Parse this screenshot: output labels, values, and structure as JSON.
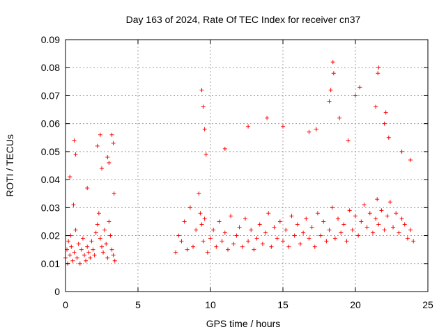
{
  "chart_data": {
    "type": "scatter",
    "title": "Day 163 of 2024, Rate Of TEC Index for receiver cn37",
    "xlabel": "GPS time / hours",
    "ylabel": "ROTI / TECUs",
    "xlim": [
      0,
      25
    ],
    "ylim": [
      0,
      0.09
    ],
    "xticks": [
      "0",
      "5",
      "10",
      "15",
      "20",
      "25"
    ],
    "yticks": [
      "0",
      "0.01",
      "0.02",
      "0.03",
      "0.04",
      "0.05",
      "0.06",
      "0.07",
      "0.08",
      "0.09"
    ],
    "grid": true,
    "marker": "+",
    "color": "#ff0000",
    "series": [
      {
        "x": [
          0.0,
          0.1,
          0.15,
          0.2,
          0.3,
          0.35,
          0.4,
          0.5,
          0.6,
          0.7,
          0.8,
          0.9,
          1.0,
          1.1,
          1.2,
          1.3,
          1.4,
          1.5,
          1.6,
          1.7,
          1.8,
          1.9,
          2.0,
          2.1,
          2.2,
          2.3,
          2.4,
          2.5,
          2.6,
          2.7,
          2.8,
          2.9,
          3.0,
          3.1,
          3.2,
          3.3,
          3.4,
          0.3,
          0.6,
          0.7,
          1.5,
          2.2,
          2.4,
          2.9,
          3.2,
          3.3,
          0.55,
          2.5,
          3.0,
          3.35,
          7.6,
          7.8,
          8.0,
          8.2,
          8.4,
          8.6,
          8.8,
          9.0,
          9.2,
          9.3,
          9.4,
          9.5,
          9.6,
          9.8,
          10.0,
          10.2,
          10.4,
          10.6,
          10.8,
          11.0,
          11.2,
          11.4,
          11.6,
          11.8,
          12.0,
          12.2,
          12.4,
          12.6,
          12.8,
          13.0,
          13.2,
          13.4,
          13.6,
          13.8,
          14.0,
          14.2,
          14.4,
          14.6,
          14.8,
          15.0,
          15.2,
          15.4,
          15.6,
          15.8,
          16.0,
          16.2,
          16.4,
          16.6,
          16.8,
          17.0,
          17.2,
          17.4,
          17.6,
          17.8,
          18.0,
          18.2,
          18.4,
          18.6,
          18.8,
          19.0,
          19.2,
          19.4,
          19.6,
          19.8,
          20.0,
          20.2,
          20.4,
          20.6,
          20.8,
          21.0,
          21.2,
          21.4,
          21.5,
          21.6,
          21.8,
          22.0,
          22.2,
          22.4,
          22.6,
          22.8,
          23.0,
          23.2,
          23.4,
          23.6,
          23.8,
          24.0,
          9.4,
          9.5,
          9.6,
          9.7,
          11.0,
          12.6,
          13.9,
          15.0,
          16.8,
          17.3,
          18.2,
          18.3,
          18.45,
          18.5,
          18.9,
          19.5,
          20.0,
          20.3,
          21.4,
          21.55,
          21.6,
          22.0,
          22.1,
          22.3,
          23.2,
          23.8
        ],
        "y": [
          0.012,
          0.015,
          0.01,
          0.018,
          0.013,
          0.02,
          0.016,
          0.011,
          0.014,
          0.022,
          0.012,
          0.017,
          0.01,
          0.015,
          0.019,
          0.013,
          0.011,
          0.016,
          0.014,
          0.012,
          0.018,
          0.015,
          0.013,
          0.021,
          0.024,
          0.028,
          0.019,
          0.016,
          0.014,
          0.022,
          0.017,
          0.012,
          0.025,
          0.02,
          0.015,
          0.013,
          0.011,
          0.041,
          0.054,
          0.049,
          0.037,
          0.052,
          0.056,
          0.048,
          0.056,
          0.053,
          0.031,
          0.044,
          0.046,
          0.035,
          0.014,
          0.02,
          0.018,
          0.025,
          0.015,
          0.03,
          0.016,
          0.022,
          0.035,
          0.028,
          0.024,
          0.018,
          0.026,
          0.014,
          0.019,
          0.022,
          0.016,
          0.025,
          0.018,
          0.021,
          0.015,
          0.027,
          0.017,
          0.02,
          0.023,
          0.016,
          0.026,
          0.018,
          0.022,
          0.015,
          0.019,
          0.024,
          0.017,
          0.021,
          0.028,
          0.016,
          0.023,
          0.019,
          0.025,
          0.018,
          0.022,
          0.016,
          0.027,
          0.02,
          0.024,
          0.017,
          0.021,
          0.026,
          0.019,
          0.023,
          0.016,
          0.028,
          0.02,
          0.025,
          0.018,
          0.022,
          0.03,
          0.019,
          0.026,
          0.021,
          0.024,
          0.018,
          0.029,
          0.022,
          0.027,
          0.02,
          0.025,
          0.031,
          0.023,
          0.028,
          0.021,
          0.026,
          0.033,
          0.024,
          0.029,
          0.022,
          0.027,
          0.032,
          0.023,
          0.028,
          0.021,
          0.026,
          0.024,
          0.019,
          0.022,
          0.018,
          0.072,
          0.066,
          0.058,
          0.049,
          0.051,
          0.059,
          0.062,
          0.059,
          0.057,
          0.058,
          0.068,
          0.072,
          0.082,
          0.078,
          0.062,
          0.054,
          0.07,
          0.073,
          0.066,
          0.078,
          0.08,
          0.06,
          0.064,
          0.055,
          0.05,
          0.047
        ]
      }
    ]
  }
}
